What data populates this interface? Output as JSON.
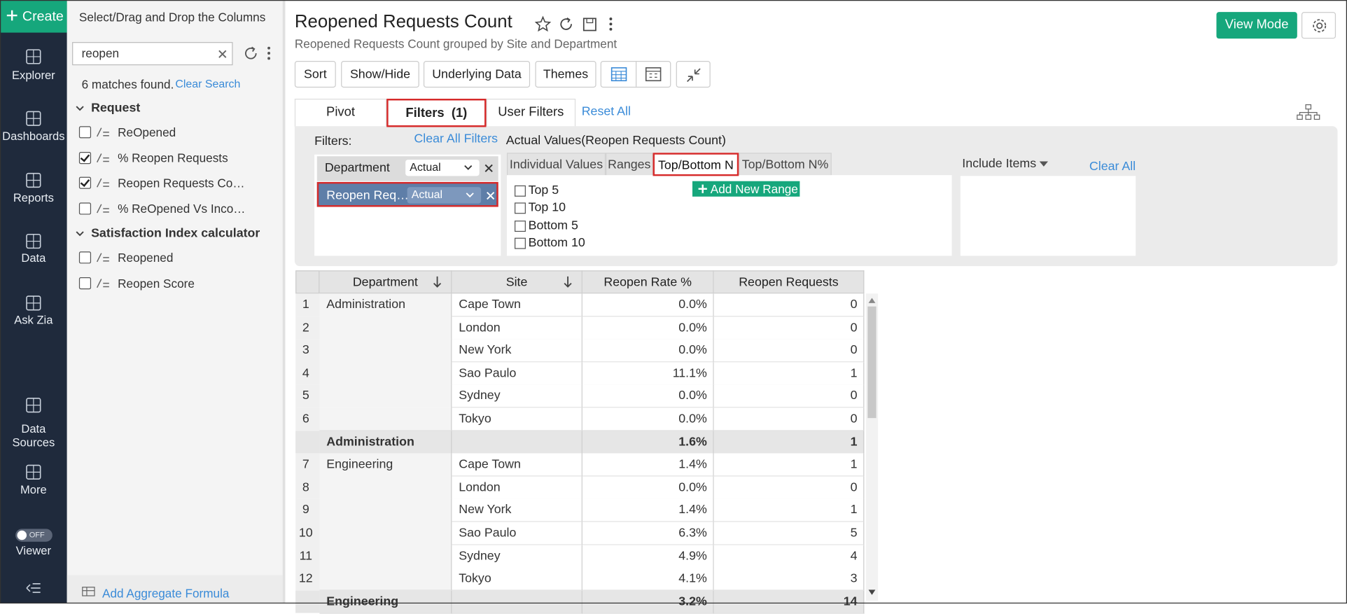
{
  "sidebar": {
    "create": "Create",
    "nav": [
      "Explorer",
      "Dashboards",
      "Reports",
      "Data",
      "Ask Zia",
      "Data Sources",
      "More"
    ],
    "toggle": {
      "state": "OFF",
      "label": "Viewer"
    }
  },
  "columns_panel": {
    "title": "Select/Drag and Drop the Columns",
    "search": "reopen",
    "matches": "6 matches found.",
    "clear_search": "Clear Search",
    "groups": [
      {
        "name": "Request",
        "columns": [
          {
            "name": "ReOpened",
            "checked": false
          },
          {
            "name": "% Reopen Requests",
            "checked": true
          },
          {
            "name": "Reopen Requests Co…",
            "checked": true
          },
          {
            "name": "% ReOpened Vs Inco…",
            "checked": false
          }
        ]
      },
      {
        "name": "Satisfaction Index calculator",
        "columns": [
          {
            "name": "Reopened",
            "checked": false
          },
          {
            "name": "Reopen Score",
            "checked": false
          }
        ]
      }
    ],
    "add_formula": "Add Aggregate Formula"
  },
  "header": {
    "title": "Reopened Requests Count",
    "subtitle": "Reopened Requests Count grouped by Site and Department",
    "toolbar": [
      "Sort",
      "Show/Hide",
      "Underlying Data",
      "Themes"
    ],
    "view_mode": "View Mode"
  },
  "tabs": {
    "items": [
      "Pivot",
      "Filters  (1)",
      "User Filters"
    ],
    "active": 1,
    "reset": "Reset All"
  },
  "filters": {
    "label": "Filters:",
    "clear_all_filters": "Clear All Filters",
    "fields": [
      {
        "name": "Department",
        "mode": "Actual",
        "selected": false
      },
      {
        "name": "Reopen Req…",
        "mode": "Actual",
        "selected": true
      }
    ],
    "heading": "Actual Values(Reopen Requests Count)",
    "subtabs": [
      "Individual Values",
      "Ranges",
      "Top/Bottom N",
      "Top/Bottom N%"
    ],
    "active_subtab": 2,
    "options": [
      "Top 5",
      "Top 10",
      "Bottom 5",
      "Bottom 10"
    ],
    "add_range": "Add New Range",
    "include": "Include Items",
    "clear_all": "Clear All"
  },
  "table": {
    "columns": [
      "Department",
      "Site",
      "Reopen Rate %",
      "Reopen Requests"
    ],
    "rows": [
      {
        "index": 1,
        "department": "Administration",
        "site": "Cape Town",
        "rate": "0.0%",
        "requests": 0
      },
      {
        "index": 2,
        "site": "London",
        "rate": "0.0%",
        "requests": 0
      },
      {
        "index": 3,
        "site": "New York",
        "rate": "0.0%",
        "requests": 0
      },
      {
        "index": 4,
        "site": "Sao Paulo",
        "rate": "11.1%",
        "requests": 1
      },
      {
        "index": 5,
        "site": "Sydney",
        "rate": "0.0%",
        "requests": 0
      },
      {
        "index": 6,
        "site": "Tokyo",
        "rate": "0.0%",
        "requests": 0
      },
      {
        "department": "Administration",
        "rate": "1.6%",
        "requests": 1
      },
      {
        "index": 7,
        "department": "Engineering",
        "site": "Cape Town",
        "rate": "1.4%",
        "requests": 1
      },
      {
        "index": 8,
        "site": "London",
        "rate": "0.0%",
        "requests": 0
      },
      {
        "index": 9,
        "site": "New York",
        "rate": "1.4%",
        "requests": 1
      },
      {
        "index": 10,
        "site": "Sao Paulo",
        "rate": "6.3%",
        "requests": 5
      },
      {
        "index": 11,
        "site": "Sydney",
        "rate": "4.9%",
        "requests": 4
      },
      {
        "index": 12,
        "site": "Tokyo",
        "rate": "4.1%",
        "requests": 3
      },
      {
        "department": "Engineering",
        "rate": "3.2%",
        "requests": 14
      }
    ]
  }
}
